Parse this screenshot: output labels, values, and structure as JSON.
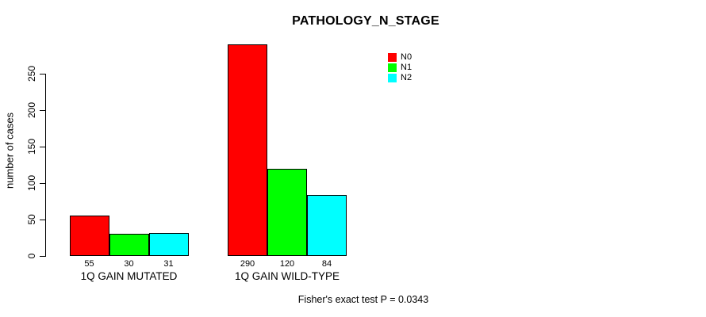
{
  "title": "PATHOLOGY_N_STAGE",
  "footer": "Fisher's exact test P = 0.0343",
  "chart_data": {
    "type": "bar",
    "title": "PATHOLOGY_N_STAGE",
    "xlabel": "",
    "ylabel": "number of cases",
    "ylim": [
      0,
      250
    ],
    "yticks": [
      0,
      50,
      100,
      150,
      200,
      250
    ],
    "grid": false,
    "legend_position": "top-right",
    "categories": [
      "1Q GAIN MUTATED",
      "1Q GAIN WILD-TYPE"
    ],
    "series": [
      {
        "name": "N0",
        "color": "#ff0000",
        "values": [
          55,
          290
        ]
      },
      {
        "name": "N1",
        "color": "#00ff00",
        "values": [
          30,
          120
        ]
      },
      {
        "name": "N2",
        "color": "#00ffff",
        "values": [
          31,
          84
        ]
      }
    ],
    "bar_value_labels": [
      [
        55,
        30,
        31
      ],
      [
        290,
        120,
        84
      ]
    ],
    "annotation": "Fisher's exact test P = 0.0343"
  }
}
